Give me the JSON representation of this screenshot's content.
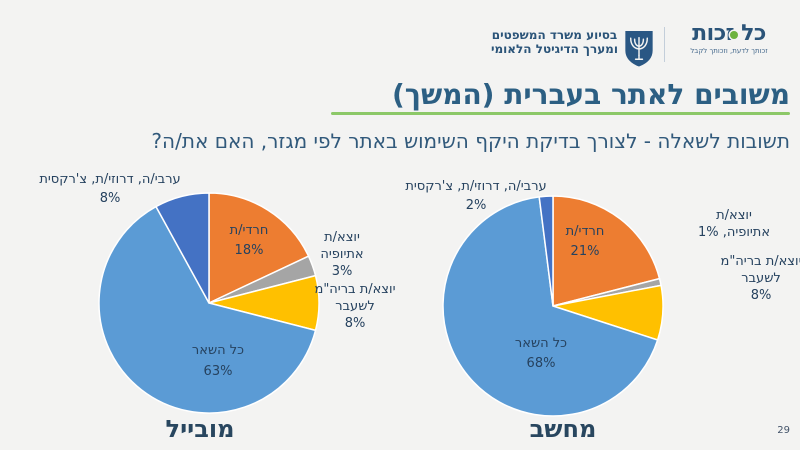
{
  "page": {
    "number": "29",
    "background": "#F3F3F2"
  },
  "header": {
    "logo": {
      "title": "כל זכות",
      "tagline": "זכותך לדעת, וזכותך לקבל",
      "dot_color": "#6DB33F"
    },
    "credit_lines": [
      "בסיוע משרד המשפטים",
      "ומערך הדיגיטל הלאומי"
    ],
    "emblem": "israel-state-emblem"
  },
  "title": "משובים לאתר בעברית (המשך)",
  "subtitle": "תשובות לשאלה - לצורך בדיקת היקף השימוש באתר לפי מגזר, האם את/ה?",
  "accent": {
    "underline_green": "#8CC868",
    "navy": "#2C5F83"
  },
  "chart_data": [
    {
      "type": "pie",
      "title": "מובייל",
      "labels": [
        "חרדי/ת",
        "יוצא/ת אתיופיה",
        "יוצא/ת בריה\"מ לשעבר",
        "כל השאר",
        "ערבי/ה, דרוזי/ת, צ'רקסית"
      ],
      "values": [
        18,
        3,
        8,
        63,
        8
      ],
      "colors": [
        "#ED7D31",
        "#A5A5A5",
        "#FFC000",
        "#5B9BD5",
        "#4472C4"
      ],
      "units": "percent",
      "start_angle_deg": 0,
      "direction": "clockwise",
      "legend": "none"
    },
    {
      "type": "pie",
      "title": "מחשב",
      "labels": [
        "חרדי/ת",
        "יוצא/ת אתיופיה",
        "יוצא/ת בריה\"מ לשעבר",
        "כל השאר",
        "ערבי/ה, דרוזי/ת, צ'רקסית"
      ],
      "values": [
        21,
        1,
        8,
        68,
        2
      ],
      "colors": [
        "#ED7D31",
        "#A5A5A5",
        "#FFC000",
        "#5B9BD5",
        "#4472C4"
      ],
      "units": "percent",
      "start_angle_deg": 0,
      "direction": "clockwise",
      "legend": "none"
    }
  ],
  "labels": {
    "mobile": {
      "arab": [
        "ערבי/ה, דרוזי/ת, צ'רקסית",
        "8%"
      ],
      "haredi": [
        "חרדי/ת",
        "18%"
      ],
      "ethiopia": [
        "יוצא/ת",
        "אתיופיה",
        "3%"
      ],
      "ussr": [
        "יוצא/ת בריה\"מ",
        "לשעבר",
        "8%"
      ],
      "rest": [
        "כל השאר",
        "63%"
      ]
    },
    "computer": {
      "arab": [
        "ערבי/ה, דרוזי/ת, צ'רקסית",
        "2%"
      ],
      "haredi": [
        "חרדי/ת",
        "21%"
      ],
      "ethiopia": [
        "יוצא/ת",
        "אתיופיה, 1%"
      ],
      "ussr": [
        "יוצא/ת בריה\"מ",
        "לשעבר",
        "8%"
      ],
      "rest": [
        "כל השאר",
        "68%"
      ]
    }
  }
}
